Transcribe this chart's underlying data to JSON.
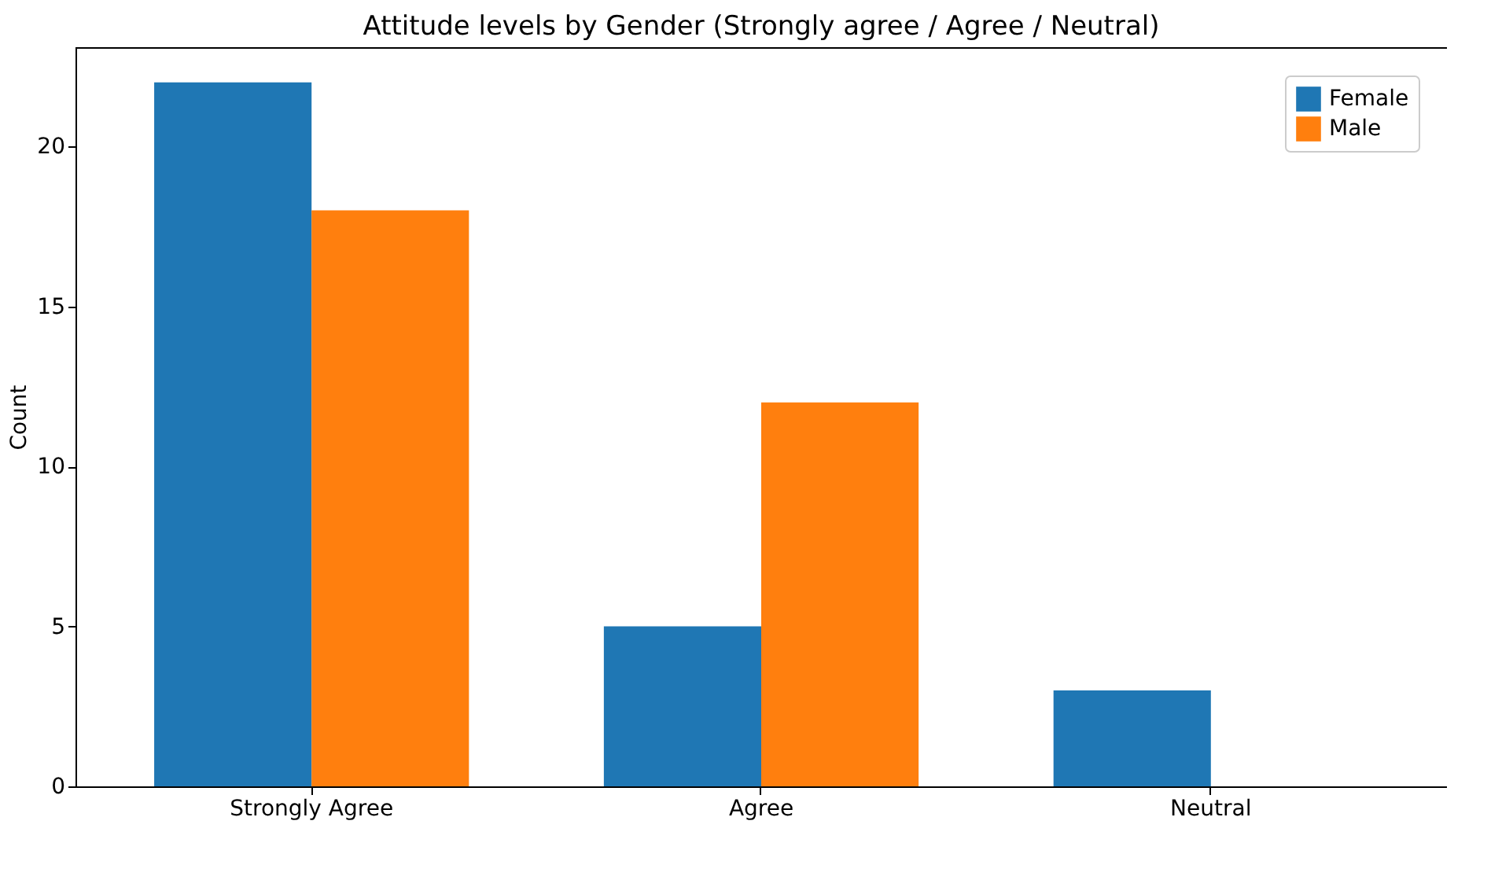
{
  "chart_data": {
    "type": "bar",
    "title": "Attitude levels by Gender (Strongly agree / Agree / Neutral)",
    "ylabel": "Count",
    "categories": [
      "Strongly Agree",
      "Agree",
      "Neutral"
    ],
    "series": [
      {
        "name": "Female",
        "color": "#1f77b4",
        "values": [
          22,
          5,
          3
        ]
      },
      {
        "name": "Male",
        "color": "#ff7f0e",
        "values": [
          18,
          12,
          0
        ]
      }
    ],
    "ylim": [
      0,
      23.1
    ],
    "yticks": [
      0,
      5,
      10,
      15,
      20
    ],
    "grid": false,
    "legend": "top right"
  }
}
